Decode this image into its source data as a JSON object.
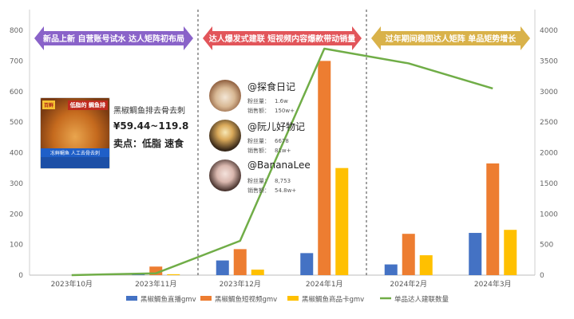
{
  "chart_data": {
    "type": "bar",
    "categories": [
      "2023年10月",
      "2023年11月",
      "2023年12月",
      "2024年1月",
      "2024年2月",
      "2024年3月"
    ],
    "series": [
      {
        "name": "黑椒鲷鱼直播gmv",
        "type": "bar",
        "axis": "left",
        "color": "#4472c4",
        "values": [
          0,
          5,
          48,
          72,
          35,
          138
        ]
      },
      {
        "name": "黑椒鲷鱼短视频gmv",
        "type": "bar",
        "axis": "left",
        "color": "#ed7d31",
        "values": [
          0,
          28,
          85,
          700,
          135,
          365
        ]
      },
      {
        "name": "黑椒鲷鱼商品卡gmv",
        "type": "bar",
        "axis": "left",
        "color": "#ffc000",
        "values": [
          0,
          3,
          18,
          350,
          65,
          148
        ]
      },
      {
        "name": "单品达人建联数量",
        "type": "line",
        "axis": "right",
        "color": "#70ad47",
        "values": [
          0,
          30,
          560,
          3700,
          3460,
          3050
        ]
      }
    ],
    "y_left": {
      "min": 0,
      "max": 800,
      "ticks": [
        0,
        100,
        200,
        300,
        400,
        500,
        600,
        700,
        800
      ]
    },
    "y_right": {
      "min": 0,
      "max": 4000,
      "ticks": [
        0,
        500,
        1000,
        1500,
        2000,
        2500,
        3000,
        3500,
        4000
      ]
    },
    "grid": false,
    "legend": "bottom",
    "title": "",
    "xlabel": "",
    "ylabel": ""
  },
  "phases": [
    {
      "label": "新品上新 自营账号试水 达人矩阵初布局",
      "color": "#8a63c9"
    },
    {
      "label": "达人爆发式建联 短视频内容爆款带动销量",
      "color": "#e2555a"
    },
    {
      "label": "过年期间稳固达人矩阵 单品矩势增长",
      "color": "#d9b24a"
    }
  ],
  "product": {
    "thumb_tag": "低脂的\n鲷鱼排",
    "thumb_badge": "百鲜",
    "thumb_ribbon": "冻鲜鲷鱼 人工去骨去刺",
    "name": "黑椒鲷鱼排去骨去刺",
    "price": "¥59.44~119.8",
    "selling_points": "卖点：低脂 速食"
  },
  "influencers": [
    {
      "name": "@探食日记",
      "fans_label": "粉丝量：",
      "fans": "1.6w",
      "sales_label": "销售额：",
      "sales": "150w+"
    },
    {
      "name": "@阮儿好物记",
      "fans_label": "粉丝量：",
      "fans": "6678",
      "sales_label": "销售额：",
      "sales": "81w+"
    },
    {
      "name": "@BananaLee",
      "fans_label": "粉丝量：",
      "fans": "8,753",
      "sales_label": "销售额：",
      "sales": "54.8w+"
    }
  ]
}
